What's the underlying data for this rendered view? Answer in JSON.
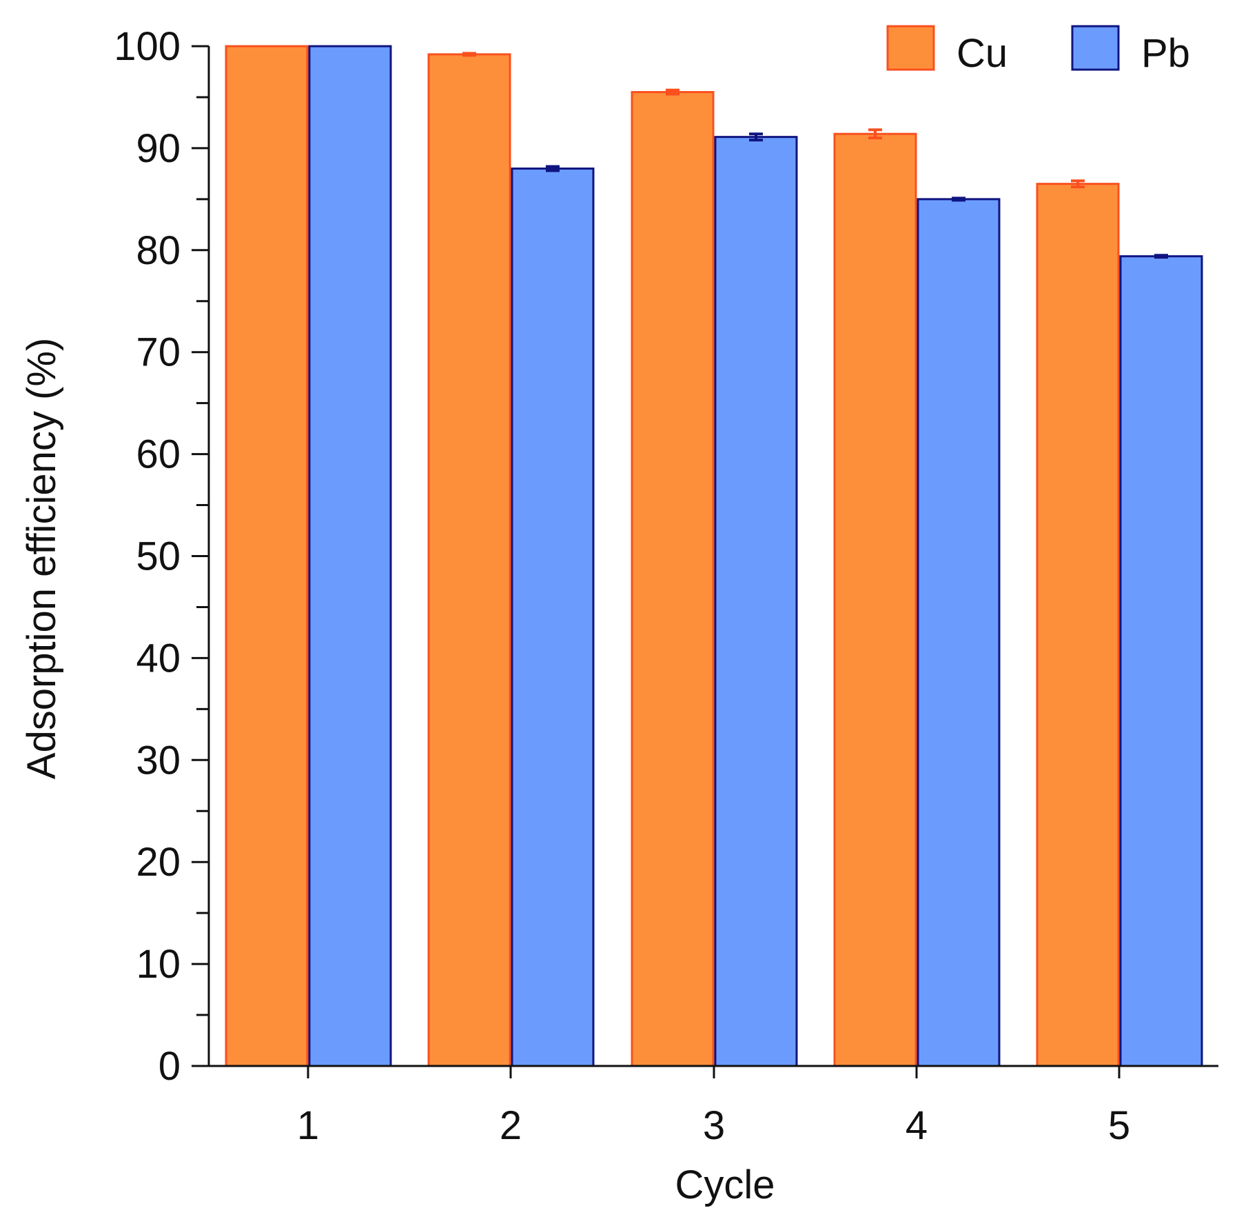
{
  "chart_data": {
    "type": "bar",
    "title": "",
    "xlabel": "Cycle",
    "ylabel": "Adsorption efficiency (%)",
    "ylim": [
      0,
      100
    ],
    "yticks": [
      0,
      10,
      20,
      30,
      40,
      50,
      60,
      70,
      80,
      90,
      100
    ],
    "ytick_labels": [
      "0",
      "10",
      "20",
      "30",
      "40",
      "50",
      "60",
      "70",
      "80",
      "90",
      "100"
    ],
    "categories": [
      "1",
      "2",
      "3",
      "4",
      "5"
    ],
    "series": [
      {
        "name": "Cu",
        "values": [
          100.0,
          99.2,
          95.5,
          91.4,
          86.5
        ],
        "errors": [
          0.0,
          0.1,
          0.2,
          0.4,
          0.3
        ],
        "fill": "#fe8f3a",
        "stroke": "#f9501f"
      },
      {
        "name": "Pb",
        "values": [
          100.0,
          88.0,
          91.1,
          85.0,
          79.4
        ],
        "errors": [
          0.0,
          0.2,
          0.3,
          0.1,
          0.1
        ],
        "fill": "#6b9cfd",
        "stroke": "#101580"
      }
    ],
    "legend_position": "top-right",
    "grid": false
  }
}
